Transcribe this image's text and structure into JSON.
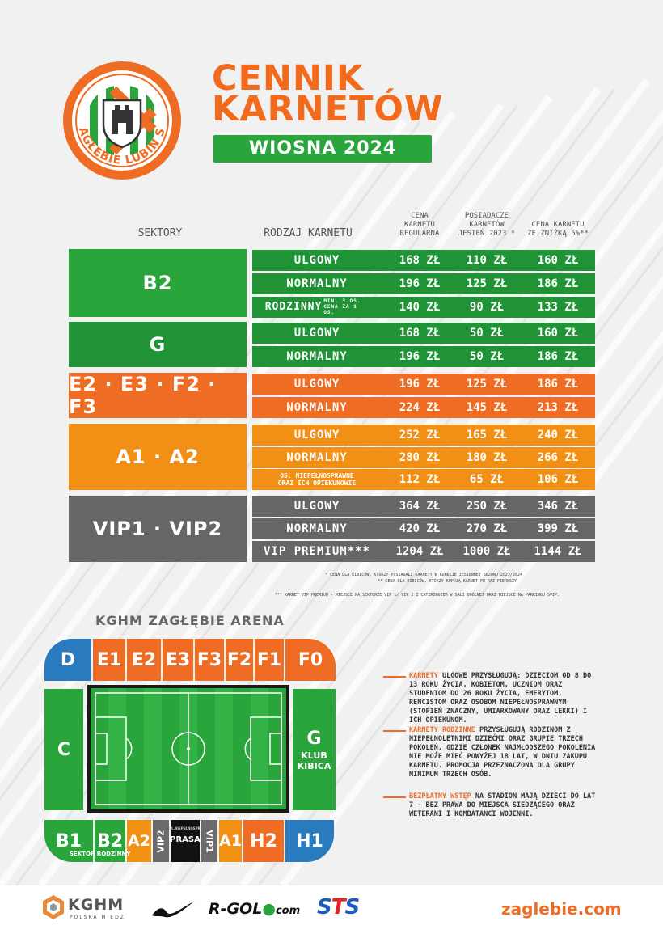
{
  "header": {
    "title_line1": "CENNIK",
    "title_line2": "KARNETÓW",
    "season": "WIOSNA 2024",
    "logo_text": "ZAGŁĘBIE LUBIN SA"
  },
  "table": {
    "headers": {
      "sectors": "SEKTORY",
      "type": "RODZAJ KARNETU",
      "regular": "CENA\nKARNETU\nREGULARNA",
      "holders": "POSIADACZE\nKARNETÓW\nJESIEŃ 2023 *",
      "discount": "CENA KARNETU\nZE ZNIŻKĄ 5%**"
    },
    "sectors": [
      {
        "name": "B2",
        "rows": [
          {
            "type": "ULGOWY",
            "regular": "168 ZŁ",
            "holders": "110 ZŁ",
            "discount": "160 ZŁ"
          },
          {
            "type": "NORMALNY",
            "regular": "196 ZŁ",
            "holders": "125 ZŁ",
            "discount": "186 ZŁ"
          },
          {
            "type": "RODZINNY",
            "type_note": "MIN. 3 OS. CENA ZA 1 OS.",
            "regular": "140 ZŁ",
            "holders": "90 ZŁ",
            "discount": "133 ZŁ"
          }
        ]
      },
      {
        "name": "G",
        "rows": [
          {
            "type": "ULGOWY",
            "regular": "168 ZŁ",
            "holders": "50 ZŁ",
            "discount": "160 ZŁ"
          },
          {
            "type": "NORMALNY",
            "regular": "196 ZŁ",
            "holders": "50 ZŁ",
            "discount": "186 ZŁ"
          }
        ]
      },
      {
        "name": "E2 · E3 · F2 · F3",
        "rows": [
          {
            "type": "ULGOWY",
            "regular": "196 ZŁ",
            "holders": "125 ZŁ",
            "discount": "186 ZŁ"
          },
          {
            "type": "NORMALNY",
            "regular": "224 ZŁ",
            "holders": "145 ZŁ",
            "discount": "213 ZŁ"
          }
        ]
      },
      {
        "name": "A1 · A2",
        "rows": [
          {
            "type": "ULGOWY",
            "regular": "252 ZŁ",
            "holders": "165 ZŁ",
            "discount": "240 ZŁ"
          },
          {
            "type": "NORMALNY",
            "regular": "280 ZŁ",
            "holders": "180 ZŁ",
            "discount": "266 ZŁ"
          },
          {
            "type": "OS. NIEPEŁNOSPRAWNE\nORAZ ICH OPIEKUNOWIE",
            "regular": "112 ZŁ",
            "holders": "65 ZŁ",
            "discount": "106 ZŁ"
          }
        ]
      },
      {
        "name": "VIP1 · VIP2",
        "rows": [
          {
            "type": "ULGOWY",
            "regular": "364 ZŁ",
            "holders": "250 ZŁ",
            "discount": "346 ZŁ"
          },
          {
            "type": "NORMALNY",
            "regular": "420 ZŁ",
            "holders": "270 ZŁ",
            "discount": "399 ZŁ"
          },
          {
            "type": "VIP PREMIUM***",
            "regular": "1204 ZŁ",
            "holders": "1000 ZŁ",
            "discount": "1144 ZŁ"
          }
        ]
      }
    ],
    "footnotes": [
      "* CENA DLA KIBICÓW, KTÓRZY POSIADALI KARNETY W RUNDZIE JESIENNEJ SEZONU 2023/2024",
      "** CENA DLA KIBICÓW, KTÓRZY KUPUJĄ KARNET PO RAZ PIERWSZY",
      "*** KARNET VIP PREMIUM - MIEJSCE NA SEKTORZE VIP 1/ VIP 2 Z CATERINGIEM W SALI OGÓLNEJ ORAZ MIEJSCE NA PARKINGU SVIP."
    ]
  },
  "arena": {
    "title": "KGHM ZAGŁĘBIE ARENA",
    "top": [
      "D",
      "E1",
      "E2",
      "E3",
      "F3",
      "F2",
      "F1",
      "F0"
    ],
    "left": "C",
    "right": "G",
    "right_sub": "KLUB\nKIBICA",
    "bottom": [
      "B1",
      "B2",
      "A2",
      "VIP2",
      "PRASA",
      "VIP1",
      "A1",
      "H2",
      "H1"
    ],
    "b1_sub": "SEKTOR RODZINNY",
    "disabled_label": "DL.NIEPEŁNOSPR."
  },
  "info": [
    {
      "highlight": "KARNETY",
      "highlight2": "ULGOWE",
      "text": "PRZYSŁUGUJĄ: DZIECIOM OD 8 DO 13 ROKU ŻYCIA, KOBIETOM, UCZNIOM ORAZ STUDENTOM DO 26 ROKU ŻYCIA, EMERYTOM, RENCISTOM ORAZ OSOBOM NIEPEŁNOSPRAWNYM (STOPIEŃ ZNACZNY, UMIARKOWANY ORAZ LEKKI) I ICH OPIEKUNOM."
    },
    {
      "highlight": "KARNETY RODZINNE",
      "text": "PRZYSŁUGUJĄ RODZINOM Z NIEPEŁNOLETNIMI DZIEĆMI ORAZ GRUPIE TRZECH POKOLEŃ, GDZIE CZŁONEK NAJMŁODSZEGO POKOLENIA NIE MOŻE MIEĆ POWYŻEJ 18 LAT, W DNIU ZAKUPU KARNETU. PROMOCJA PRZEZNACZONA DLA GRUPY MINIMUM TRZECH OSÓB."
    },
    {
      "highlight": "BEZPŁATNY WSTĘP",
      "text": "NA STADION MAJĄ DZIECI DO LAT 7 - BEZ PRAWA DO MIEJSCA SIEDZĄCEGO ORAZ WETERANI I KOMBATANCI WOJENNI."
    }
  ],
  "footer": {
    "kghm": "KGHM",
    "kghm_sub": "POLSKA MIEDŹ",
    "rgol_a": "R-GOL",
    "rgol_dot": "●",
    "rgol_b": "com",
    "sts_s1": "S",
    "sts_t": "T",
    "sts_s2": "S",
    "site": "zaglebie.com"
  },
  "colors": {
    "orange": "#ee6c23",
    "green": "#2aa53c",
    "amber": "#f28f15",
    "gray": "#666666",
    "blue": "#2a7ac0"
  }
}
